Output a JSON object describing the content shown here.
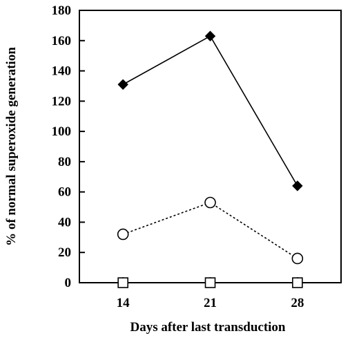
{
  "chart_data": {
    "type": "line",
    "xlabel": "Days after last transduction",
    "ylabel": "% of normal superoxide generation",
    "x": [
      14,
      21,
      28
    ],
    "x_tick_labels": [
      "14",
      "21",
      "28"
    ],
    "ylim": [
      0,
      180
    ],
    "y_ticks": [
      0,
      20,
      40,
      60,
      80,
      100,
      120,
      140,
      160,
      180
    ],
    "grid": false,
    "legend": "none",
    "series": [
      {
        "marker": "filled-diamond",
        "line": "solid",
        "color": "#000000",
        "values": [
          131,
          163,
          64
        ]
      },
      {
        "marker": "open-circle",
        "line": "dotted",
        "color": "#000000",
        "values": [
          32,
          53,
          16
        ]
      },
      {
        "marker": "open-square",
        "line": "none",
        "color": "#000000",
        "values": [
          0,
          0,
          0
        ]
      }
    ]
  }
}
